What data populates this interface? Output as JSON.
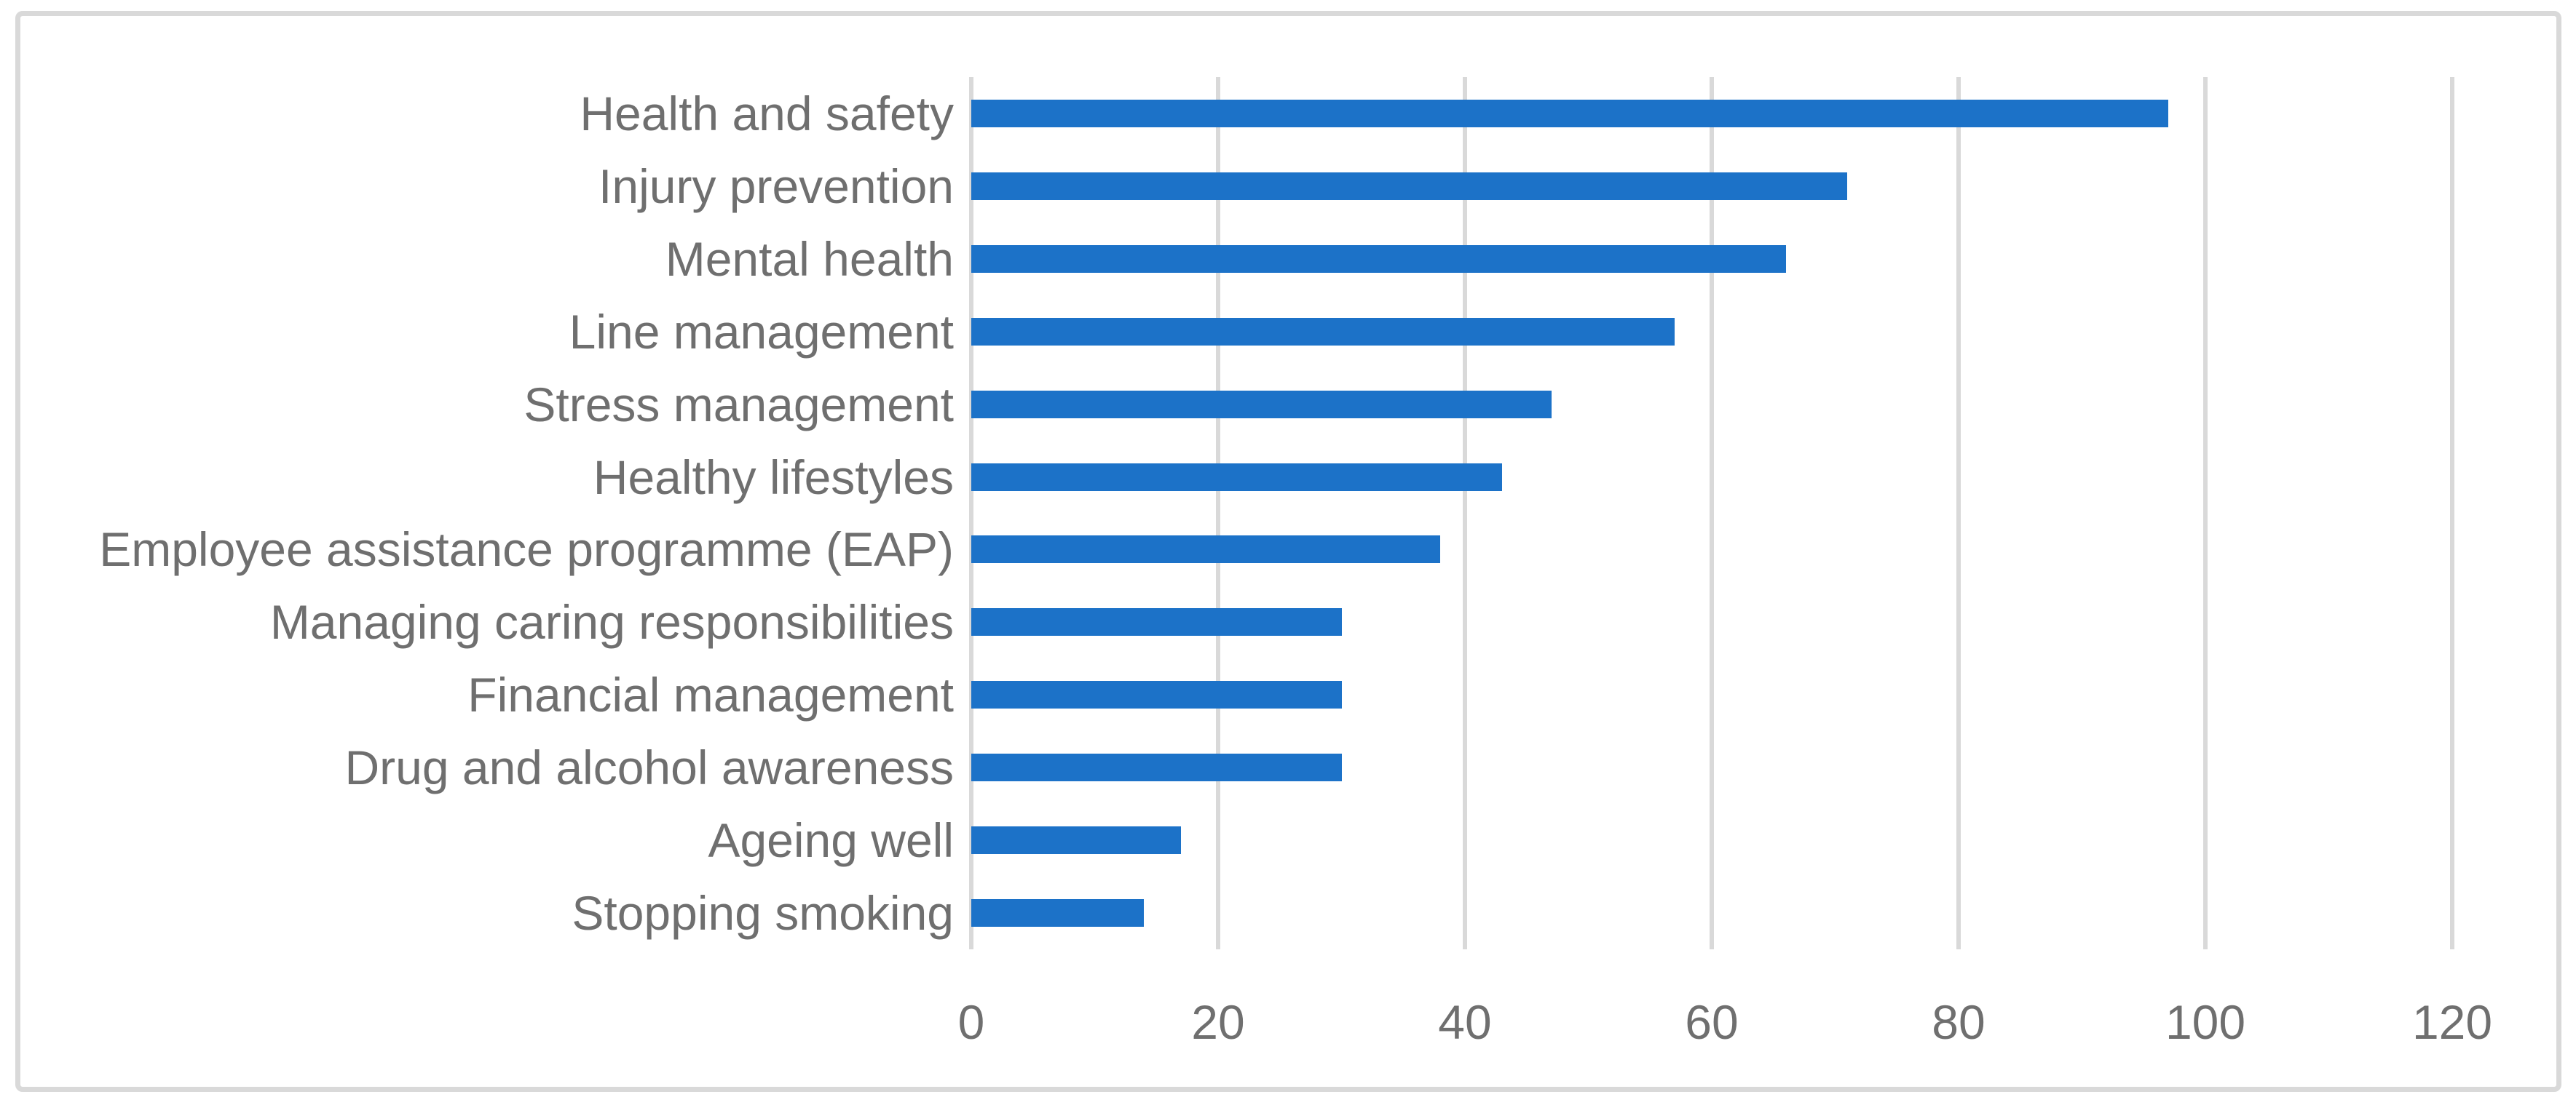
{
  "chart_data": {
    "type": "bar",
    "orientation": "horizontal",
    "title": "",
    "xlabel": "",
    "ylabel": "",
    "categories": [
      "Health and safety",
      "Injury prevention",
      "Mental health",
      "Line management",
      "Stress management",
      "Healthy lifestyles",
      "Employee assistance programme (EAP)",
      "Managing caring responsibilities",
      "Financial management",
      "Drug and alcohol awareness",
      "Ageing well",
      "Stopping smoking"
    ],
    "values": [
      97,
      71,
      66,
      57,
      47,
      43,
      38,
      30,
      30,
      30,
      17,
      14
    ],
    "xlim": [
      0,
      120
    ],
    "xticks": [
      0,
      20,
      40,
      60,
      80,
      100,
      120
    ],
    "grid": "vertical-only",
    "legend": "none",
    "colors": {
      "bar": "#1C72C8",
      "gridline": "#D9D9D9",
      "axis_text": "#6F6F6F",
      "frame_border": "#D9D9D9",
      "background": "#FFFFFF"
    }
  }
}
